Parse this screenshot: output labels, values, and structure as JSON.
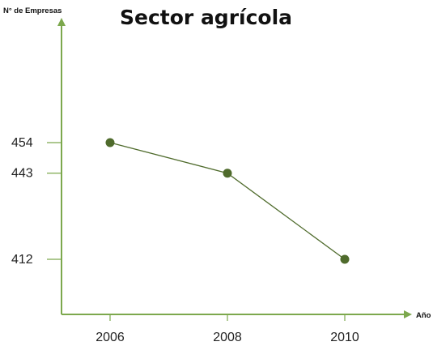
{
  "colors": {
    "axis": "#7ca84d",
    "series": "#4f6b2c",
    "text": "#111111"
  },
  "chart_data": {
    "type": "line",
    "title": "Sector agrícola",
    "xlabel": "Año",
    "ylabel": "N° de Empresas",
    "categories": [
      "2006",
      "2008",
      "2010"
    ],
    "yticks": [
      454,
      443,
      412
    ],
    "series": [
      {
        "values": [
          454,
          443,
          412
        ]
      }
    ],
    "grid": false,
    "legend": "none"
  }
}
